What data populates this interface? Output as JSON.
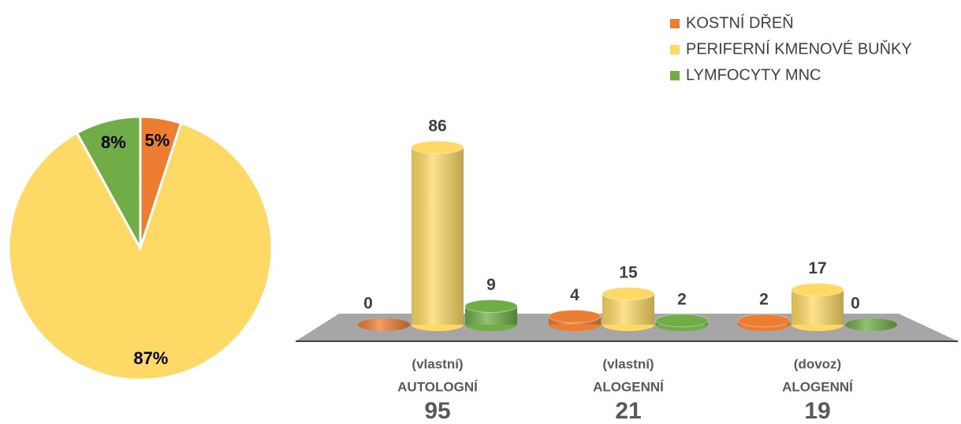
{
  "chart_data": [
    {
      "type": "pie",
      "values": [
        5,
        87,
        8
      ],
      "value_labels": [
        "5%",
        "87%",
        "8%"
      ],
      "colors": [
        "#ED7D31",
        "#FFD966",
        "#70AD47"
      ]
    },
    {
      "type": "bar3d",
      "categories": [
        {
          "note": "(vlastní)",
          "label": "AUTOLOGNÍ",
          "total": 95
        },
        {
          "note": "(vlastní)",
          "label": "ALOGENNÍ",
          "total": 21
        },
        {
          "note": "(dovoz)",
          "label": "ALOGENNÍ",
          "total": 19
        }
      ],
      "series": [
        {
          "name": "KOSTNÍ DŘEŇ",
          "color": "#ED7D31",
          "values": [
            0,
            4,
            2
          ]
        },
        {
          "name": "PERIFERNÍ KMENOVÉ BUŇKY",
          "color": "#FFD966",
          "values": [
            86,
            15,
            17
          ]
        },
        {
          "name": "LYMFOCYTY MNC",
          "color": "#70AD47",
          "values": [
            9,
            2,
            0
          ]
        }
      ],
      "legend": "top-right"
    }
  ]
}
